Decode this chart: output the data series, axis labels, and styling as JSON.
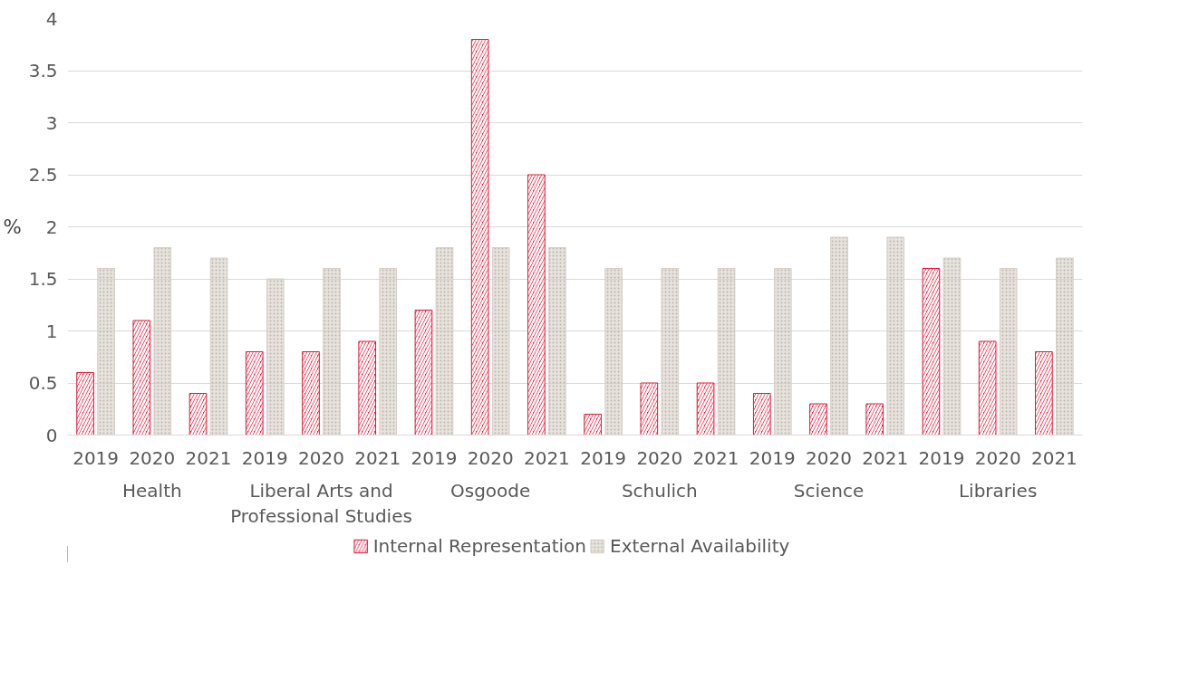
{
  "chart_data": {
    "type": "bar",
    "ylabel": "%",
    "categories": [
      "2019",
      "2020",
      "2021",
      "2019",
      "2020",
      "2021",
      "2019",
      "2020",
      "2021",
      "2019",
      "2020",
      "2021",
      "2019",
      "2020",
      "2021",
      "2019",
      "2020",
      "2021"
    ],
    "annotations": [
      "Health",
      "Liberal Arts and Professional Studies",
      "Osgoode",
      "Schulich",
      "Science",
      "Libraries"
    ],
    "series": [
      {
        "name": "Internal Representation",
        "color": "#e31937",
        "values": [
          0.6,
          1.1,
          0.4,
          0.8,
          0.8,
          0.9,
          1.2,
          3.8,
          2.5,
          0.2,
          0.5,
          0.5,
          0.4,
          0.3,
          0.3,
          1.6,
          0.9,
          0.8
        ]
      },
      {
        "name": "External Availability",
        "color": "#d6cec6",
        "values": [
          1.6,
          1.8,
          1.7,
          1.5,
          1.6,
          1.6,
          1.8,
          1.8,
          1.8,
          1.6,
          1.6,
          1.6,
          1.6,
          1.9,
          1.9,
          1.7,
          1.6,
          1.7
        ]
      }
    ],
    "ylim": [
      0,
      4
    ],
    "yticks": [
      0,
      0.5,
      1,
      1.5,
      2,
      2.5,
      3,
      3.5,
      4
    ],
    "grid": "y",
    "legend": "bottom"
  }
}
